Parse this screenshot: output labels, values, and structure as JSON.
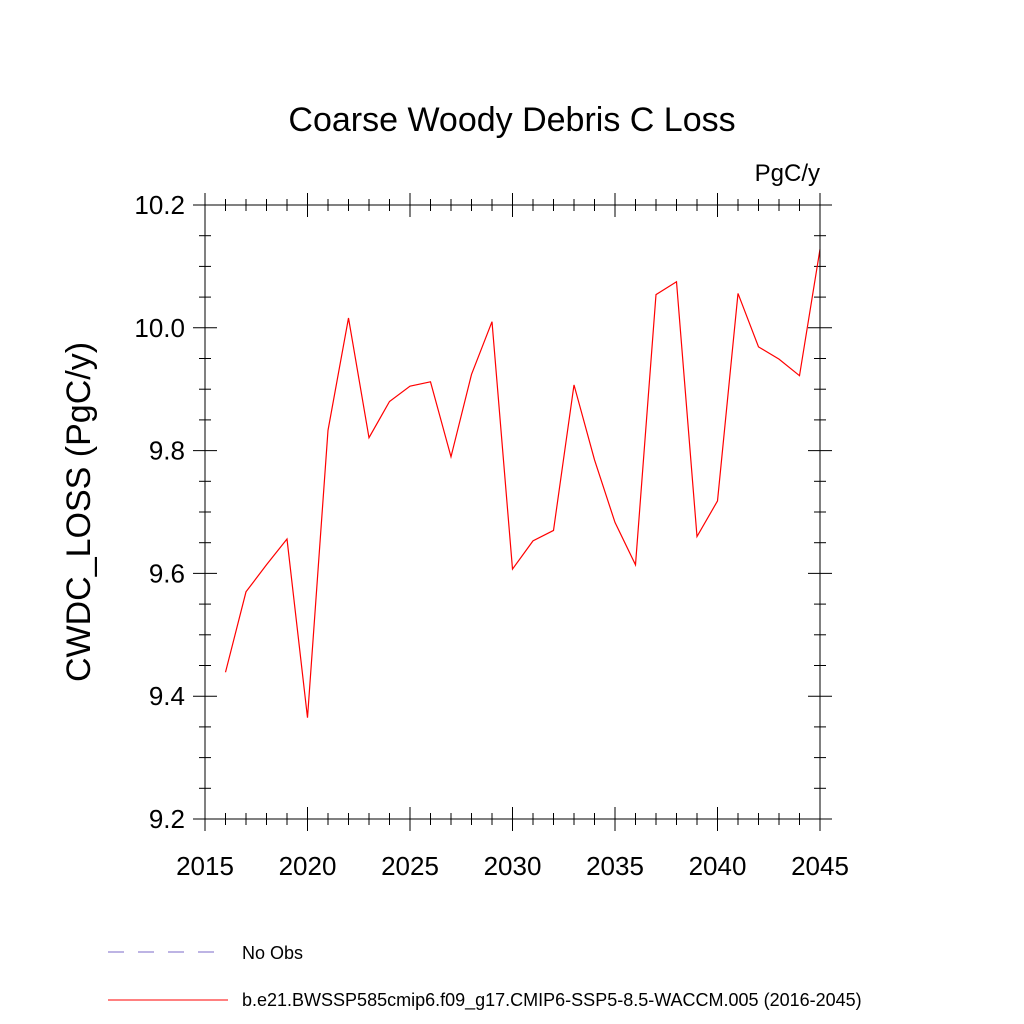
{
  "chart_data": {
    "type": "line",
    "title": "Coarse Woody Debris C Loss",
    "units": "PgC/y",
    "ylabel": "CWDC_LOSS  (PgC/y)",
    "xlabel": "",
    "xlim": [
      2015,
      2045
    ],
    "ylim": [
      9.2,
      10.2
    ],
    "xticks": [
      2015,
      2020,
      2025,
      2030,
      2035,
      2040,
      2045
    ],
    "xtick_labels": [
      "2015",
      "2020",
      "2025",
      "2030",
      "2035",
      "2040",
      "2045"
    ],
    "yticks": [
      9.2,
      9.4,
      9.6,
      9.8,
      10.0,
      10.2
    ],
    "ytick_labels": [
      "9.2",
      "9.4",
      "9.6",
      "9.8",
      "10.0",
      "10.2"
    ],
    "grid": false,
    "series": [
      {
        "name": "b.e21.BWSSP585cmip6.f09_g17.CMIP6-SSP5-8.5-WACCM.005 (2016-2045)",
        "color": "#ff0000",
        "x": [
          2016,
          2017,
          2018,
          2019,
          2020,
          2021,
          2022,
          2023,
          2024,
          2025,
          2026,
          2027,
          2028,
          2029,
          2030,
          2031,
          2032,
          2033,
          2034,
          2035,
          2036,
          2037,
          2038,
          2039,
          2040,
          2041,
          2042,
          2043,
          2044,
          2045
        ],
        "values": [
          9.439,
          9.57,
          9.614,
          9.656,
          9.365,
          9.833,
          10.016,
          9.821,
          9.88,
          9.905,
          9.912,
          9.79,
          9.924,
          10.01,
          9.607,
          9.653,
          9.67,
          9.907,
          9.785,
          9.683,
          9.614,
          10.054,
          10.075,
          9.66,
          9.718,
          10.056,
          9.969,
          9.949,
          9.922,
          10.128
        ]
      }
    ],
    "legend": [
      {
        "label": "No Obs",
        "style": "dashed",
        "color": "#7b68c8"
      },
      {
        "label": "b.e21.BWSSP585cmip6.f09_g17.CMIP6-SSP5-8.5-WACCM.005 (2016-2045)",
        "style": "solid",
        "color": "#ff0000"
      }
    ],
    "legend_position": "bottom-left"
  }
}
